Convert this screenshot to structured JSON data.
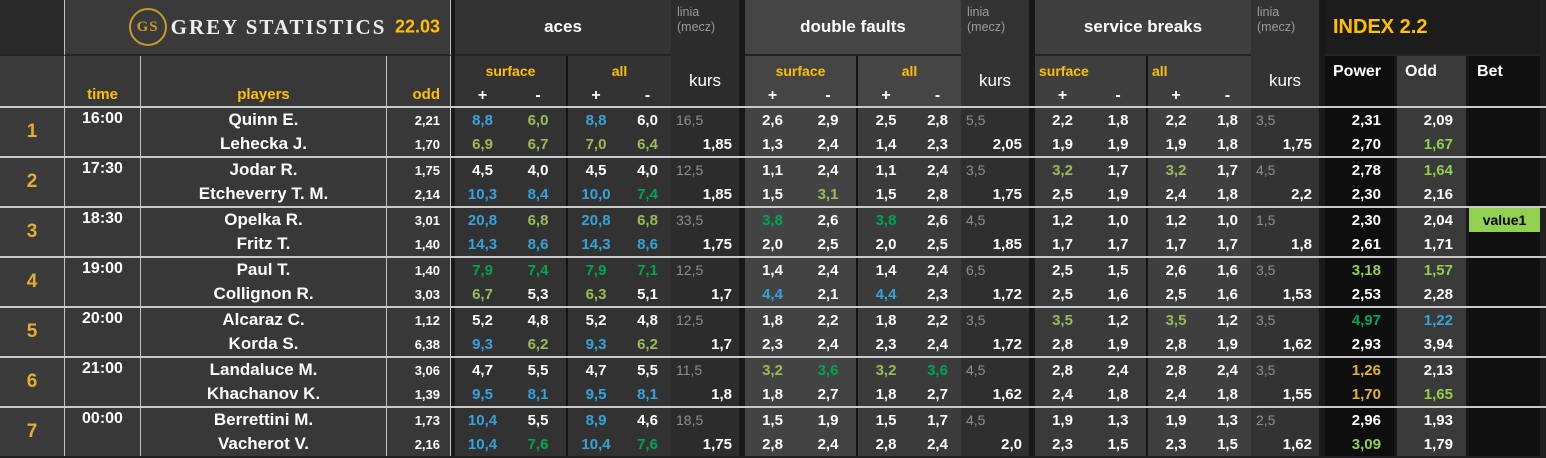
{
  "colors": {
    "accent_gold": "#ffc000",
    "stat_blue": "#36a3dc",
    "stat_green": "#00a651",
    "stat_olive_green": "#9bbb59",
    "index_light_green": "#92d050",
    "power_gold": "#e0b23c",
    "bet_highlight_bg": "#92d050"
  },
  "header": {
    "logo_initials": "GS",
    "brand": "GREY STATISTICS",
    "date": "22.03",
    "time_label": "time",
    "players_label": "players",
    "odd_label": "odd",
    "sections": [
      {
        "title": "aces"
      },
      {
        "title": "double faults"
      },
      {
        "title": "service breaks"
      }
    ],
    "linia_label": "linia",
    "linia_sub": "(mecz)",
    "kurs_label": "kurs",
    "surface_label": "surface",
    "all_label": "all",
    "plus_label": "+",
    "minus_label": "-",
    "index_title": "INDEX 2.2",
    "power_label": "Power",
    "odd_col_label": "Odd",
    "bet_label": "Bet"
  },
  "matches": [
    {
      "n": "1",
      "time": "16:00",
      "players": [
        "Quinn E.",
        "Lehecka J."
      ],
      "odds": [
        "2,21",
        "1,70"
      ],
      "aces": {
        "rows": [
          [
            [
              "8,8",
              "b"
            ],
            [
              "6,0",
              "lg"
            ],
            [
              "8,8",
              "b"
            ],
            [
              "6,0",
              "w"
            ]
          ],
          [
            [
              "6,9",
              "lg"
            ],
            [
              "6,7",
              "lg"
            ],
            [
              "7,0",
              "lg"
            ],
            [
              "6,4",
              "lg"
            ]
          ]
        ],
        "linia": "16,5",
        "kurs": "1,85"
      },
      "double_faults": {
        "rows": [
          [
            [
              "2,6",
              "w"
            ],
            [
              "2,9",
              "w"
            ],
            [
              "2,5",
              "w"
            ],
            [
              "2,8",
              "w"
            ]
          ],
          [
            [
              "1,3",
              "w"
            ],
            [
              "2,4",
              "w"
            ],
            [
              "1,4",
              "w"
            ],
            [
              "2,3",
              "w"
            ]
          ]
        ],
        "linia": "5,5",
        "kurs": "2,05"
      },
      "service_breaks": {
        "rows": [
          [
            [
              "2,2",
              "w"
            ],
            [
              "1,8",
              "w"
            ],
            [
              "2,2",
              "w"
            ],
            [
              "1,8",
              "w"
            ]
          ],
          [
            [
              "1,9",
              "w"
            ],
            [
              "1,9",
              "w"
            ],
            [
              "1,9",
              "w"
            ],
            [
              "1,8",
              "w"
            ]
          ]
        ],
        "linia": "3,5",
        "kurs": "1,75"
      },
      "index": {
        "power": [
          [
            "2,31",
            "w"
          ],
          [
            "2,70",
            "w"
          ]
        ],
        "odd": [
          [
            "2,09",
            "w"
          ],
          [
            "1,67",
            "lgb"
          ]
        ],
        "bet": [
          "",
          ""
        ]
      }
    },
    {
      "n": "2",
      "time": "17:30",
      "players": [
        "Jodar R.",
        "Etcheverry T. M."
      ],
      "odds": [
        "1,75",
        "2,14"
      ],
      "aces": {
        "rows": [
          [
            [
              "4,5",
              "w"
            ],
            [
              "4,0",
              "w"
            ],
            [
              "4,5",
              "w"
            ],
            [
              "4,0",
              "w"
            ]
          ],
          [
            [
              "10,3",
              "b"
            ],
            [
              "8,4",
              "b"
            ],
            [
              "10,0",
              "b"
            ],
            [
              "7,4",
              "g"
            ]
          ]
        ],
        "linia": "12,5",
        "kurs": "1,85"
      },
      "double_faults": {
        "rows": [
          [
            [
              "1,1",
              "w"
            ],
            [
              "2,4",
              "w"
            ],
            [
              "1,1",
              "w"
            ],
            [
              "2,4",
              "w"
            ]
          ],
          [
            [
              "1,5",
              "w"
            ],
            [
              "3,1",
              "lg"
            ],
            [
              "1,5",
              "w"
            ],
            [
              "2,8",
              "w"
            ]
          ]
        ],
        "linia": "3,5",
        "kurs": "1,75"
      },
      "service_breaks": {
        "rows": [
          [
            [
              "3,2",
              "lg"
            ],
            [
              "1,7",
              "w"
            ],
            [
              "3,2",
              "lg"
            ],
            [
              "1,7",
              "w"
            ]
          ],
          [
            [
              "2,5",
              "w"
            ],
            [
              "1,9",
              "w"
            ],
            [
              "2,4",
              "w"
            ],
            [
              "1,8",
              "w"
            ]
          ]
        ],
        "linia": "4,5",
        "kurs": "2,2"
      },
      "index": {
        "power": [
          [
            "2,78",
            "w"
          ],
          [
            "2,30",
            "w"
          ]
        ],
        "odd": [
          [
            "1,64",
            "lgb"
          ],
          [
            "2,16",
            "w"
          ]
        ],
        "bet": [
          "",
          ""
        ]
      }
    },
    {
      "n": "3",
      "time": "18:30",
      "players": [
        "Opelka R.",
        "Fritz T."
      ],
      "odds": [
        "3,01",
        "1,40"
      ],
      "aces": {
        "rows": [
          [
            [
              "20,8",
              "b"
            ],
            [
              "6,8",
              "lg"
            ],
            [
              "20,8",
              "b"
            ],
            [
              "6,8",
              "lg"
            ]
          ],
          [
            [
              "14,3",
              "b"
            ],
            [
              "8,6",
              "b"
            ],
            [
              "14,3",
              "b"
            ],
            [
              "8,6",
              "b"
            ]
          ]
        ],
        "linia": "33,5",
        "kurs": "1,75"
      },
      "double_faults": {
        "rows": [
          [
            [
              "3,8",
              "g"
            ],
            [
              "2,6",
              "w"
            ],
            [
              "3,8",
              "g"
            ],
            [
              "2,6",
              "w"
            ]
          ],
          [
            [
              "2,0",
              "w"
            ],
            [
              "2,5",
              "w"
            ],
            [
              "2,0",
              "w"
            ],
            [
              "2,5",
              "w"
            ]
          ]
        ],
        "linia": "4,5",
        "kurs": "1,85"
      },
      "service_breaks": {
        "rows": [
          [
            [
              "1,2",
              "w"
            ],
            [
              "1,0",
              "w"
            ],
            [
              "1,2",
              "w"
            ],
            [
              "1,0",
              "w"
            ]
          ],
          [
            [
              "1,7",
              "w"
            ],
            [
              "1,7",
              "w"
            ],
            [
              "1,7",
              "w"
            ],
            [
              "1,7",
              "w"
            ]
          ]
        ],
        "linia": "1,5",
        "kurs": "1,8"
      },
      "index": {
        "power": [
          [
            "2,30",
            "w"
          ],
          [
            "2,61",
            "w"
          ]
        ],
        "odd": [
          [
            "2,04",
            "w"
          ],
          [
            "1,71",
            "w"
          ]
        ],
        "bet": [
          "value1",
          ""
        ]
      }
    },
    {
      "n": "4",
      "time": "19:00",
      "players": [
        "Paul T.",
        "Collignon R."
      ],
      "odds": [
        "1,40",
        "3,03"
      ],
      "aces": {
        "rows": [
          [
            [
              "7,9",
              "g"
            ],
            [
              "7,4",
              "g"
            ],
            [
              "7,9",
              "g"
            ],
            [
              "7,1",
              "g"
            ]
          ],
          [
            [
              "6,7",
              "lg"
            ],
            [
              "5,3",
              "w"
            ],
            [
              "6,3",
              "lg"
            ],
            [
              "5,1",
              "w"
            ]
          ]
        ],
        "linia": "12,5",
        "kurs": "1,7"
      },
      "double_faults": {
        "rows": [
          [
            [
              "1,4",
              "w"
            ],
            [
              "2,4",
              "w"
            ],
            [
              "1,4",
              "w"
            ],
            [
              "2,4",
              "w"
            ]
          ],
          [
            [
              "4,4",
              "b"
            ],
            [
              "2,1",
              "w"
            ],
            [
              "4,4",
              "b"
            ],
            [
              "2,3",
              "w"
            ]
          ]
        ],
        "linia": "6,5",
        "kurs": "1,72"
      },
      "service_breaks": {
        "rows": [
          [
            [
              "2,5",
              "w"
            ],
            [
              "1,5",
              "w"
            ],
            [
              "2,6",
              "w"
            ],
            [
              "1,6",
              "w"
            ]
          ],
          [
            [
              "2,5",
              "w"
            ],
            [
              "1,6",
              "w"
            ],
            [
              "2,5",
              "w"
            ],
            [
              "1,6",
              "w"
            ]
          ]
        ],
        "linia": "3,5",
        "kurs": "1,53"
      },
      "index": {
        "power": [
          [
            "3,18",
            "lgb"
          ],
          [
            "2,53",
            "w"
          ]
        ],
        "odd": [
          [
            "1,57",
            "lgb"
          ],
          [
            "2,28",
            "w"
          ]
        ],
        "bet": [
          "",
          ""
        ]
      }
    },
    {
      "n": "5",
      "time": "20:00",
      "players": [
        "Alcaraz C.",
        "Korda S."
      ],
      "odds": [
        "1,12",
        "6,38"
      ],
      "aces": {
        "rows": [
          [
            [
              "5,2",
              "w"
            ],
            [
              "4,8",
              "w"
            ],
            [
              "5,2",
              "w"
            ],
            [
              "4,8",
              "w"
            ]
          ],
          [
            [
              "9,3",
              "b"
            ],
            [
              "6,2",
              "lg"
            ],
            [
              "9,3",
              "b"
            ],
            [
              "6,2",
              "lg"
            ]
          ]
        ],
        "linia": "12,5",
        "kurs": "1,7"
      },
      "double_faults": {
        "rows": [
          [
            [
              "1,8",
              "w"
            ],
            [
              "2,2",
              "w"
            ],
            [
              "1,8",
              "w"
            ],
            [
              "2,2",
              "w"
            ]
          ],
          [
            [
              "2,3",
              "w"
            ],
            [
              "2,4",
              "w"
            ],
            [
              "2,3",
              "w"
            ],
            [
              "2,4",
              "w"
            ]
          ]
        ],
        "linia": "3,5",
        "kurs": "1,72"
      },
      "service_breaks": {
        "rows": [
          [
            [
              "3,5",
              "lg"
            ],
            [
              "1,2",
              "w"
            ],
            [
              "3,5",
              "lg"
            ],
            [
              "1,2",
              "w"
            ]
          ],
          [
            [
              "2,8",
              "w"
            ],
            [
              "1,9",
              "w"
            ],
            [
              "2,8",
              "w"
            ],
            [
              "1,9",
              "w"
            ]
          ]
        ],
        "linia": "3,5",
        "kurs": "1,62"
      },
      "index": {
        "power": [
          [
            "4,97",
            "g"
          ],
          [
            "2,93",
            "w"
          ]
        ],
        "odd": [
          [
            "1,22",
            "b"
          ],
          [
            "3,94",
            "w"
          ]
        ],
        "bet": [
          "",
          ""
        ]
      }
    },
    {
      "n": "6",
      "time": "21:00",
      "players": [
        "Landaluce M.",
        "Khachanov K."
      ],
      "odds": [
        "3,06",
        "1,39"
      ],
      "aces": {
        "rows": [
          [
            [
              "4,7",
              "w"
            ],
            [
              "5,5",
              "w"
            ],
            [
              "4,7",
              "w"
            ],
            [
              "5,5",
              "w"
            ]
          ],
          [
            [
              "9,5",
              "b"
            ],
            [
              "8,1",
              "b"
            ],
            [
              "9,5",
              "b"
            ],
            [
              "8,1",
              "b"
            ]
          ]
        ],
        "linia": "11,5",
        "kurs": "1,8"
      },
      "double_faults": {
        "rows": [
          [
            [
              "3,2",
              "lg"
            ],
            [
              "3,6",
              "g"
            ],
            [
              "3,2",
              "lg"
            ],
            [
              "3,6",
              "g"
            ]
          ],
          [
            [
              "1,8",
              "w"
            ],
            [
              "2,7",
              "w"
            ],
            [
              "1,8",
              "w"
            ],
            [
              "2,7",
              "w"
            ]
          ]
        ],
        "linia": "4,5",
        "kurs": "1,62"
      },
      "service_breaks": {
        "rows": [
          [
            [
              "2,8",
              "w"
            ],
            [
              "2,4",
              "w"
            ],
            [
              "2,8",
              "w"
            ],
            [
              "2,4",
              "w"
            ]
          ],
          [
            [
              "2,4",
              "w"
            ],
            [
              "1,8",
              "w"
            ],
            [
              "2,4",
              "w"
            ],
            [
              "1,8",
              "w"
            ]
          ]
        ],
        "linia": "3,5",
        "kurs": "1,55"
      },
      "index": {
        "power": [
          [
            "1,26",
            "gold"
          ],
          [
            "1,70",
            "gold"
          ]
        ],
        "odd": [
          [
            "2,13",
            "w"
          ],
          [
            "1,65",
            "lgb"
          ]
        ],
        "bet": [
          "",
          ""
        ]
      }
    },
    {
      "n": "7",
      "time": "00:00",
      "players": [
        "Berrettini M.",
        "Vacherot V."
      ],
      "odds": [
        "1,73",
        "2,16"
      ],
      "aces": {
        "rows": [
          [
            [
              "10,4",
              "b"
            ],
            [
              "5,5",
              "w"
            ],
            [
              "8,9",
              "b"
            ],
            [
              "4,6",
              "w"
            ]
          ],
          [
            [
              "10,4",
              "b"
            ],
            [
              "7,6",
              "g"
            ],
            [
              "10,4",
              "b"
            ],
            [
              "7,6",
              "g"
            ]
          ]
        ],
        "linia": "18,5",
        "kurs": "1,75"
      },
      "double_faults": {
        "rows": [
          [
            [
              "1,5",
              "w"
            ],
            [
              "1,9",
              "w"
            ],
            [
              "1,5",
              "w"
            ],
            [
              "1,7",
              "w"
            ]
          ],
          [
            [
              "2,8",
              "w"
            ],
            [
              "2,4",
              "w"
            ],
            [
              "2,8",
              "w"
            ],
            [
              "2,4",
              "w"
            ]
          ]
        ],
        "linia": "4,5",
        "kurs": "2,0"
      },
      "service_breaks": {
        "rows": [
          [
            [
              "1,9",
              "w"
            ],
            [
              "1,3",
              "w"
            ],
            [
              "1,9",
              "w"
            ],
            [
              "1,3",
              "w"
            ]
          ],
          [
            [
              "2,3",
              "w"
            ],
            [
              "1,5",
              "w"
            ],
            [
              "2,3",
              "w"
            ],
            [
              "1,5",
              "w"
            ]
          ]
        ],
        "linia": "2,5",
        "kurs": "1,62"
      },
      "index": {
        "power": [
          [
            "2,96",
            "w"
          ],
          [
            "3,09",
            "lgb"
          ]
        ],
        "odd": [
          [
            "1,93",
            "w"
          ],
          [
            "1,79",
            "w"
          ]
        ],
        "bet": [
          "",
          ""
        ]
      }
    }
  ]
}
